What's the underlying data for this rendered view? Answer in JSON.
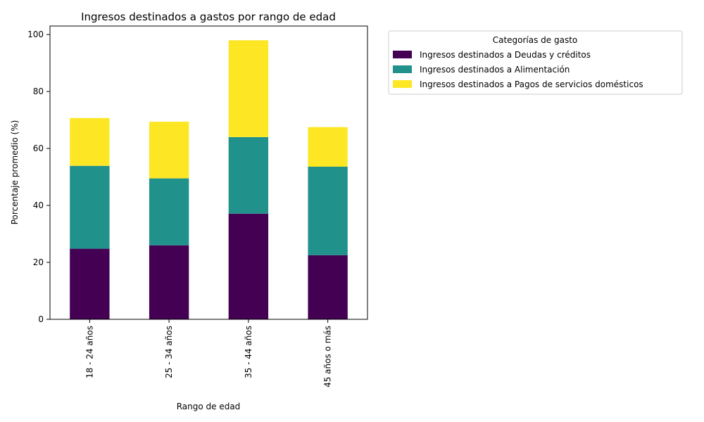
{
  "chart_data": {
    "type": "bar",
    "stacked": true,
    "title": "Ingresos destinados a gastos por rango de edad",
    "xlabel": "Rango de edad",
    "ylabel": "Porcentaje promedio (%)",
    "ylim": [
      0,
      103
    ],
    "yticks": [
      0,
      20,
      40,
      60,
      80,
      100
    ],
    "categories": [
      "18 - 24 años",
      "25 - 34 años",
      "35 - 44 años",
      "45 años o más"
    ],
    "series": [
      {
        "name": "Ingresos destinados a Deudas y créditos",
        "color": "#440154",
        "values": [
          24.8,
          26.0,
          37.1,
          22.5
        ]
      },
      {
        "name": "Ingresos destinados a Alimentación",
        "color": "#21918c",
        "values": [
          29.1,
          23.5,
          26.9,
          31.1
        ]
      },
      {
        "name": "Ingresos destinados a Pagos de servicios domésticos",
        "color": "#fde725",
        "values": [
          16.8,
          19.9,
          34.0,
          13.9
        ]
      }
    ],
    "legend": {
      "title": "Categorías de gasto",
      "position": "outside-right"
    },
    "grid": false
  }
}
